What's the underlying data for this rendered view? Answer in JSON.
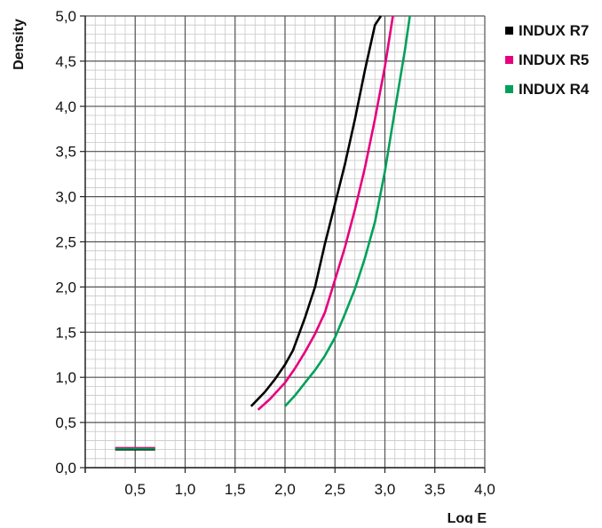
{
  "chart_data": {
    "type": "line",
    "title": "",
    "xlabel": "Log E",
    "ylabel": "Density",
    "xlim": [
      0,
      4.0
    ],
    "ylim": [
      0,
      5.0
    ],
    "x_ticks": [
      "0,5",
      "1,0",
      "1,5",
      "2,0",
      "2,5",
      "3,0",
      "3,5",
      "4,0"
    ],
    "y_ticks": [
      "0,0",
      "0,5",
      "1,0",
      "1,5",
      "2,0",
      "2,5",
      "3,0",
      "3,5",
      "4,0",
      "4,5",
      "5,0"
    ],
    "grid": true,
    "legend_position": "top-right",
    "series": [
      {
        "name": "INDUX R7",
        "color": "#000000",
        "base_fog": {
          "x": [
            0.3,
            0.7
          ],
          "y": 0.2
        },
        "x": [
          1.66,
          1.8,
          1.9,
          2.0,
          2.08,
          2.2,
          2.3,
          2.4,
          2.5,
          2.6,
          2.7,
          2.8,
          2.9,
          2.96
        ],
        "y": [
          0.68,
          0.84,
          0.98,
          1.14,
          1.3,
          1.66,
          2.0,
          2.48,
          2.92,
          3.36,
          3.86,
          4.4,
          4.9,
          5.0
        ]
      },
      {
        "name": "INDUX R5",
        "color": "#e6007e",
        "base_fog": {
          "x": [
            0.3,
            0.7
          ],
          "y": 0.22
        },
        "x": [
          1.73,
          1.85,
          2.0,
          2.1,
          2.2,
          2.3,
          2.4,
          2.5,
          2.6,
          2.7,
          2.8,
          2.9,
          3.0,
          3.08
        ],
        "y": [
          0.64,
          0.76,
          0.94,
          1.1,
          1.28,
          1.48,
          1.72,
          2.08,
          2.44,
          2.86,
          3.32,
          3.86,
          4.44,
          5.0
        ]
      },
      {
        "name": "INDUX R4",
        "color": "#00a05a",
        "base_fog": {
          "x": [
            0.3,
            0.7
          ],
          "y": 0.21
        },
        "x": [
          2.0,
          2.1,
          2.2,
          2.3,
          2.4,
          2.5,
          2.6,
          2.7,
          2.8,
          2.9,
          3.0,
          3.1,
          3.2,
          3.25
        ],
        "y": [
          0.68,
          0.8,
          0.94,
          1.08,
          1.24,
          1.44,
          1.7,
          1.98,
          2.32,
          2.72,
          3.28,
          3.96,
          4.62,
          5.0
        ]
      }
    ]
  }
}
